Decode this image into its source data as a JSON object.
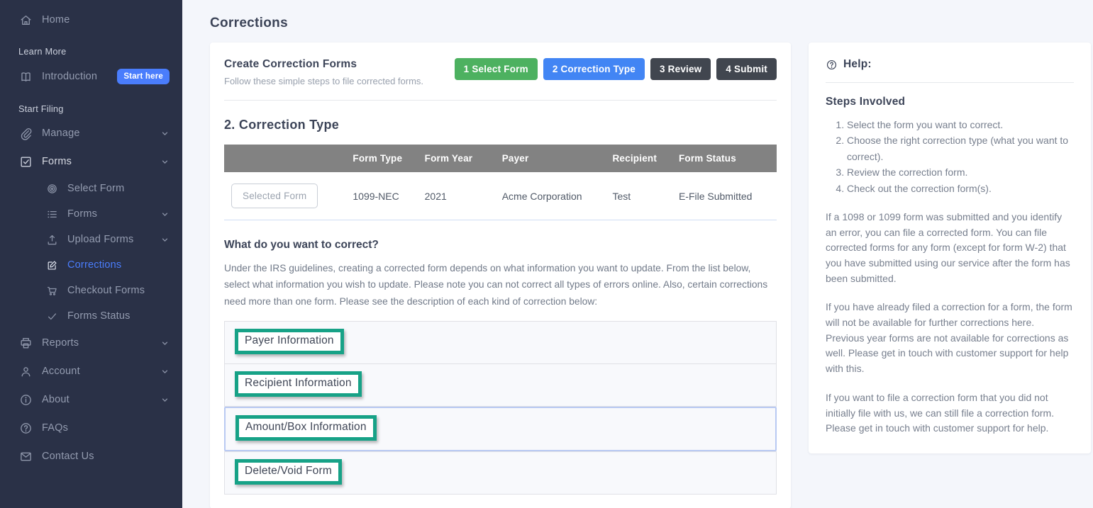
{
  "colors": {
    "sidebar_bg": "#2a3147",
    "accent_blue": "#4a7dfc",
    "accent_teal": "#17a287",
    "step_active_blue": "#4285f4",
    "step_done_green": "#4db160",
    "step_pending_dark": "#41464f",
    "table_header_gray": "#828282"
  },
  "sidebar": {
    "items": [
      {
        "type": "item",
        "label": "Home",
        "icon": "home-icon"
      },
      {
        "type": "section",
        "label": "Learn More"
      },
      {
        "type": "item",
        "label": "Introduction",
        "icon": "book-icon",
        "badge": "Start here"
      },
      {
        "type": "section",
        "label": "Start Filing"
      },
      {
        "type": "item",
        "label": "Manage",
        "icon": "paperclip-icon",
        "chevron": true
      },
      {
        "type": "item",
        "label": "Forms",
        "icon": "check-square-icon",
        "chevron": true,
        "bright": true
      },
      {
        "type": "item",
        "label": "Select Form",
        "icon": "target-icon",
        "indent": true
      },
      {
        "type": "item",
        "label": "Forms",
        "icon": "list-icon",
        "indent": true,
        "chevron": true
      },
      {
        "type": "item",
        "label": "Upload Forms",
        "icon": "upload-icon",
        "indent": true,
        "chevron": true
      },
      {
        "type": "item",
        "label": "Corrections",
        "icon": "edit-icon",
        "indent": true,
        "active": true
      },
      {
        "type": "item",
        "label": "Checkout Forms",
        "icon": "cart-icon",
        "indent": true
      },
      {
        "type": "item",
        "label": "Forms Status",
        "icon": "check-icon",
        "indent": true
      },
      {
        "type": "item",
        "label": "Reports",
        "icon": "printer-icon",
        "chevron": true
      },
      {
        "type": "item",
        "label": "Account",
        "icon": "user-icon",
        "chevron": true
      },
      {
        "type": "item",
        "label": "About",
        "icon": "info-icon",
        "chevron": true
      },
      {
        "type": "item",
        "label": "FAQs",
        "icon": "question-icon"
      },
      {
        "type": "item",
        "label": "Contact Us",
        "icon": "mail-icon"
      }
    ]
  },
  "page": {
    "title": "Corrections"
  },
  "wizard": {
    "title": "Create Correction Forms",
    "subtitle": "Follow these simple steps to file corrected forms.",
    "steps": [
      {
        "label": "1 Select Form",
        "color": "#4db160"
      },
      {
        "label": "2 Correction Type",
        "color": "#4285f4"
      },
      {
        "label": "3 Review",
        "color": "#41464f"
      },
      {
        "label": "4 Submit",
        "color": "#41464f"
      }
    ]
  },
  "section": {
    "heading": "2. Correction Type"
  },
  "form_table": {
    "headers": [
      "",
      "Form Type",
      "Form Year",
      "Payer",
      "Recipient",
      "Form Status"
    ],
    "row": {
      "button_label": "Selected Form",
      "cells": [
        "1099-NEC",
        "2021",
        "Acme Corporation",
        "Test",
        "E-File Submitted"
      ]
    }
  },
  "correct": {
    "heading": "What do you want to correct?",
    "description": "Under the IRS guidelines, creating a corrected form depends on what information you want to update. From the list below, select what information you wish to update. Please note you can not correct all types of errors online. Also, certain corrections need more than one form. Please see the description of each kind of correction below:",
    "options": [
      {
        "label": "Payer Information",
        "focused": false
      },
      {
        "label": "Recipient Information",
        "focused": false
      },
      {
        "label": "Amount/Box Information",
        "focused": true
      },
      {
        "label": "Delete/Void Form",
        "focused": false
      }
    ]
  },
  "help": {
    "title": "Help:",
    "steps_heading": "Steps Involved",
    "steps": [
      "Select the form you want to correct.",
      "Choose the right correction type (what you want to correct).",
      "Review the correction form.",
      "Check out the correction form(s)."
    ],
    "paragraphs": [
      "If a 1098 or 1099 form was submitted and you identify an error, you can file a corrected form. You can file corrected forms for any form (except for form W-2) that you have submitted using our service after the form has been submitted.",
      "If you have already filed a correction for a form, the form will not be available for further corrections here. Previous year forms are not available for corrections as well. Please get in touch with customer support for help with this.",
      "If you want to file a correction form that you did not initially file with us, we can still file a correction form. Please get in touch with customer support for help."
    ]
  }
}
